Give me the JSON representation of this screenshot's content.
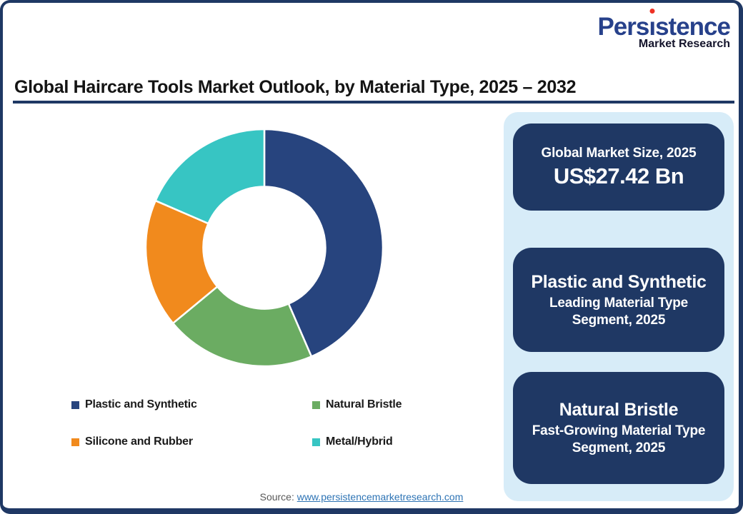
{
  "page": {
    "frame_color": "#1F3864",
    "background": "#FFFFFF"
  },
  "logo": {
    "name": "Persistence",
    "subtitle": "Market Research",
    "name_color": "#27418B",
    "dot_color": "#EE3124",
    "subtitle_color": "#14142B"
  },
  "header": {
    "title": "Global Haircare Tools Market Outlook, by Material Type, 2025 – 2032",
    "underline_color": "#1F3864"
  },
  "chart_data": {
    "type": "pie",
    "donut": true,
    "title": "Global Haircare Tools Market Outlook, by Material Type, 2025 – 2032",
    "start_angle_deg": 0,
    "clockwise": true,
    "inner_radius_ratio": 0.515,
    "legend_position": "bottom",
    "segments": [
      {
        "label": "Plastic and Synthetic",
        "share_pct": 43.5,
        "color": "#27447E"
      },
      {
        "label": "Natural Bristle",
        "share_pct": 20.5,
        "color": "#6BAC62"
      },
      {
        "label": "Silicone and Rubber",
        "share_pct": 17.5,
        "color": "#F18A1D"
      },
      {
        "label": "Metal/Hybrid",
        "share_pct": 18.5,
        "color": "#37C5C3"
      }
    ]
  },
  "sidebar": {
    "background": "#D7ECF8",
    "card_color": "#1F3864",
    "text_color": "#FFFFFF",
    "cards": [
      {
        "heading": "Global Market Size, 2025",
        "value": "US$27.42 Bn"
      },
      {
        "title": "Plastic and Synthetic",
        "subtitle": "Leading Material Type Segment, 2025"
      },
      {
        "title": "Natural Bristle",
        "subtitle": "Fast-Growing Material Type Segment, 2025"
      }
    ]
  },
  "footer": {
    "source_label": "Source:",
    "source_link": "www.persistencemarketresearch.com",
    "link_color": "#2E74B5"
  }
}
